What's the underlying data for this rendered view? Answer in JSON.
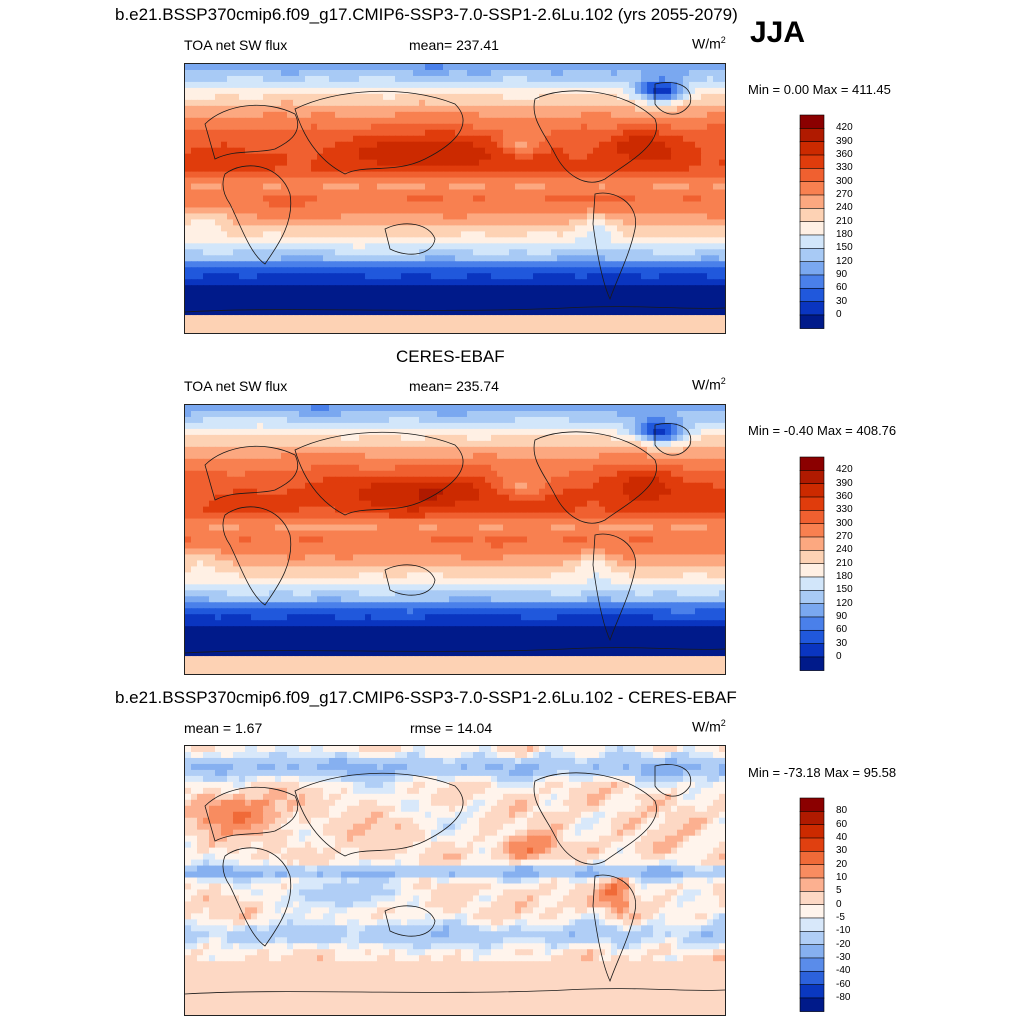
{
  "season": "JJA",
  "panels": [
    {
      "title": "b.e21.BSSP370cmip6.f09_g17.CMIP6-SSP3-7.0-SSP1-2.6Lu.102 (yrs 2055-2079)",
      "left_label": "TOA net SW flux",
      "center_label": "mean= 237.41",
      "units": "W/m",
      "units_sup": "2",
      "minmax": "Min =   0.00 Max = 411.45",
      "kind": "abs"
    },
    {
      "title": "CERES-EBAF",
      "left_label": "TOA net SW flux",
      "center_label": "mean= 235.74",
      "units": "W/m",
      "units_sup": "2",
      "minmax": "Min =  -0.40 Max = 408.76",
      "kind": "abs"
    },
    {
      "title": "b.e21.BSSP370cmip6.f09_g17.CMIP6-SSP3-7.0-SSP1-2.6Lu.102 - CERES-EBAF",
      "left_label": "mean =   1.67",
      "center_label": "rmse =  14.04",
      "units": "W/m",
      "units_sup": "2",
      "minmax": "Min = -73.18 Max =  95.58",
      "kind": "diff"
    }
  ],
  "chart_data": [
    {
      "type": "heatmap",
      "variable": "TOA net SW flux",
      "units": "W/m2",
      "mean": 237.41,
      "min": 0.0,
      "max": 411.45,
      "colorbar_levels": [
        "420",
        "390",
        "360",
        "330",
        "300",
        "270",
        "240",
        "210",
        "180",
        "150",
        "120",
        "90",
        "60",
        "30",
        "0"
      ],
      "colors": [
        "#8b0000",
        "#b01a00",
        "#cc2a00",
        "#e03c0c",
        "#f06030",
        "#f88050",
        "#fca880",
        "#fdd2b4",
        "#fff0e4",
        "#d2e6fa",
        "#a8caf5",
        "#7aa8f0",
        "#4a80ea",
        "#2058dc",
        "#0a35c0",
        "#001a8a"
      ]
    },
    {
      "type": "heatmap",
      "variable": "TOA net SW flux",
      "units": "W/m2",
      "mean": 235.74,
      "min": -0.4,
      "max": 408.76,
      "colorbar_levels": [
        "420",
        "390",
        "360",
        "330",
        "300",
        "270",
        "240",
        "210",
        "180",
        "150",
        "120",
        "90",
        "60",
        "30",
        "0"
      ],
      "colors": [
        "#8b0000",
        "#b01a00",
        "#cc2a00",
        "#e03c0c",
        "#f06030",
        "#f88050",
        "#fca880",
        "#fdd2b4",
        "#fff0e4",
        "#d2e6fa",
        "#a8caf5",
        "#7aa8f0",
        "#4a80ea",
        "#2058dc",
        "#0a35c0",
        "#001a8a"
      ]
    },
    {
      "type": "heatmap",
      "variable": "difference",
      "units": "W/m2",
      "mean": 1.67,
      "rmse": 14.04,
      "min": -73.18,
      "max": 95.58,
      "colorbar_levels": [
        "80",
        "60",
        "40",
        "30",
        "20",
        "10",
        "5",
        "0",
        "-5",
        "-10",
        "-20",
        "-30",
        "-40",
        "-60",
        "-80"
      ],
      "colors": [
        "#8b0000",
        "#b01a00",
        "#cc2a00",
        "#e04010",
        "#f06a38",
        "#f88c60",
        "#fcb090",
        "#fdd8c4",
        "#fff4ec",
        "#d8e8fa",
        "#b0cef6",
        "#86b0f0",
        "#5a8cea",
        "#2c62dc",
        "#0a38c0",
        "#001a8a"
      ]
    }
  ]
}
